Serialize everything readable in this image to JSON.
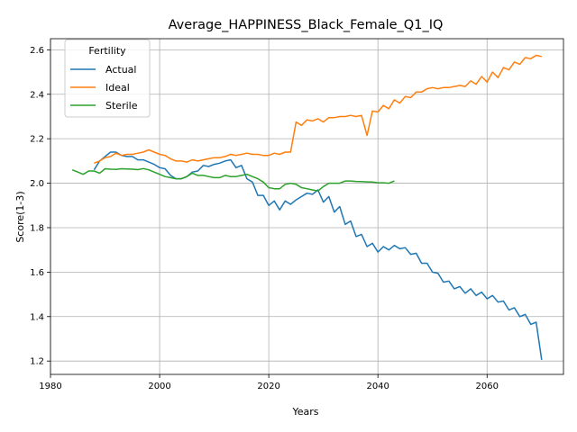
{
  "chart_data": {
    "type": "line",
    "title": "Average_HAPPINESS_Black_Female_Q1_IQ",
    "xlabel": "Years",
    "ylabel": "Score(1-3)",
    "xlim": [
      1980,
      2074
    ],
    "ylim": [
      1.14,
      2.65
    ],
    "xticks": [
      "1980",
      "2000",
      "2020",
      "2040",
      "2060"
    ],
    "yticks": [
      "1.2",
      "1.4",
      "1.6",
      "1.8",
      "2.0",
      "2.2",
      "2.4",
      "2.6"
    ],
    "grid": true,
    "legend": {
      "title": "Fertility",
      "position": "upper-left"
    },
    "series": [
      {
        "name": "Actual",
        "color": "#1f77b4",
        "x": [
          1988,
          1989,
          1990,
          1991,
          1992,
          1993,
          1994,
          1995,
          1996,
          1997,
          1998,
          1999,
          2000,
          2001,
          2002,
          2003,
          2004,
          2005,
          2006,
          2007,
          2008,
          2009,
          2010,
          2011,
          2012,
          2013,
          2014,
          2015,
          2016,
          2017,
          2018,
          2019,
          2020,
          2021,
          2022,
          2023,
          2024,
          2025,
          2026,
          2027,
          2028,
          2029,
          2030,
          2031,
          2032,
          2033,
          2034,
          2035,
          2036,
          2037,
          2038,
          2039,
          2040,
          2041,
          2042,
          2043,
          2044,
          2045,
          2046,
          2047,
          2048,
          2049,
          2050,
          2051,
          2052,
          2053,
          2054,
          2055,
          2056,
          2057,
          2058,
          2059,
          2060,
          2061,
          2062,
          2063,
          2064,
          2065,
          2066,
          2067,
          2068,
          2069,
          2070
        ],
        "y": [
          2.06,
          2.1,
          2.12,
          2.14,
          2.14,
          2.125,
          2.12,
          2.12,
          2.105,
          2.105,
          2.095,
          2.085,
          2.07,
          2.065,
          2.035,
          2.02,
          2.02,
          2.03,
          2.05,
          2.055,
          2.08,
          2.075,
          2.085,
          2.09,
          2.1,
          2.105,
          2.07,
          2.08,
          2.02,
          2.005,
          1.945,
          1.945,
          1.9,
          1.92,
          1.88,
          1.92,
          1.905,
          1.925,
          1.94,
          1.955,
          1.95,
          1.97,
          1.915,
          1.94,
          1.87,
          1.895,
          1.815,
          1.83,
          1.76,
          1.77,
          1.715,
          1.73,
          1.69,
          1.715,
          1.7,
          1.72,
          1.705,
          1.71,
          1.68,
          1.685,
          1.64,
          1.64,
          1.6,
          1.595,
          1.555,
          1.56,
          1.525,
          1.535,
          1.505,
          1.525,
          1.495,
          1.51,
          1.48,
          1.495,
          1.465,
          1.47,
          1.43,
          1.44,
          1.4,
          1.41,
          1.365,
          1.375,
          1.205
        ]
      },
      {
        "name": "Ideal",
        "color": "#ff7f0e",
        "x": [
          1988,
          1989,
          1990,
          1991,
          1992,
          1993,
          1994,
          1995,
          1996,
          1997,
          1998,
          1999,
          2000,
          2001,
          2002,
          2003,
          2004,
          2005,
          2006,
          2007,
          2008,
          2009,
          2010,
          2011,
          2012,
          2013,
          2014,
          2015,
          2016,
          2017,
          2018,
          2019,
          2020,
          2021,
          2022,
          2023,
          2024,
          2025,
          2026,
          2027,
          2028,
          2029,
          2030,
          2031,
          2032,
          2033,
          2034,
          2035,
          2036,
          2037,
          2038,
          2039,
          2040,
          2041,
          2042,
          2043,
          2044,
          2045,
          2046,
          2047,
          2048,
          2049,
          2050,
          2051,
          2052,
          2053,
          2054,
          2055,
          2056,
          2057,
          2058,
          2059,
          2060,
          2061,
          2062,
          2063,
          2064,
          2065,
          2066,
          2067,
          2068,
          2069,
          2070
        ],
        "y": [
          2.09,
          2.1,
          2.115,
          2.12,
          2.135,
          2.125,
          2.13,
          2.13,
          2.135,
          2.14,
          2.15,
          2.14,
          2.13,
          2.125,
          2.11,
          2.1,
          2.1,
          2.095,
          2.105,
          2.1,
          2.105,
          2.11,
          2.115,
          2.115,
          2.12,
          2.13,
          2.125,
          2.13,
          2.135,
          2.13,
          2.13,
          2.125,
          2.125,
          2.135,
          2.13,
          2.14,
          2.14,
          2.275,
          2.26,
          2.285,
          2.28,
          2.29,
          2.275,
          2.295,
          2.295,
          2.3,
          2.3,
          2.305,
          2.3,
          2.305,
          2.215,
          2.325,
          2.32,
          2.35,
          2.335,
          2.375,
          2.36,
          2.39,
          2.385,
          2.41,
          2.41,
          2.425,
          2.43,
          2.425,
          2.43,
          2.43,
          2.435,
          2.44,
          2.435,
          2.46,
          2.445,
          2.48,
          2.455,
          2.5,
          2.475,
          2.52,
          2.51,
          2.545,
          2.535,
          2.565,
          2.56,
          2.575,
          2.57
        ]
      },
      {
        "name": "Sterile",
        "color": "#2ca02c",
        "x": [
          1984,
          1985,
          1986,
          1987,
          1988,
          1989,
          1990,
          1991,
          1992,
          1993,
          1994,
          1995,
          1996,
          1997,
          1998,
          1999,
          2000,
          2001,
          2002,
          2003,
          2004,
          2005,
          2006,
          2007,
          2008,
          2009,
          2010,
          2011,
          2012,
          2013,
          2014,
          2015,
          2016,
          2017,
          2018,
          2019,
          2020,
          2021,
          2022,
          2023,
          2024,
          2025,
          2026,
          2027,
          2028,
          2029,
          2030,
          2031,
          2032,
          2033,
          2034,
          2035,
          2036,
          2037,
          2038,
          2039,
          2040,
          2041,
          2042,
          2043
        ],
        "y": [
          2.06,
          2.05,
          2.04,
          2.055,
          2.055,
          2.045,
          2.065,
          2.063,
          2.062,
          2.065,
          2.064,
          2.063,
          2.061,
          2.066,
          2.06,
          2.05,
          2.04,
          2.03,
          2.025,
          2.02,
          2.02,
          2.03,
          2.045,
          2.035,
          2.035,
          2.03,
          2.025,
          2.025,
          2.035,
          2.03,
          2.03,
          2.035,
          2.04,
          2.03,
          2.02,
          2.005,
          1.98,
          1.975,
          1.975,
          1.995,
          2.0,
          1.995,
          1.98,
          1.975,
          1.97,
          1.965,
          1.985,
          2.0,
          2.0,
          2.0,
          2.01,
          2.01,
          2.008,
          2.007,
          2.006,
          2.005,
          2.002,
          2.002,
          2.0,
          2.01
        ]
      }
    ]
  }
}
